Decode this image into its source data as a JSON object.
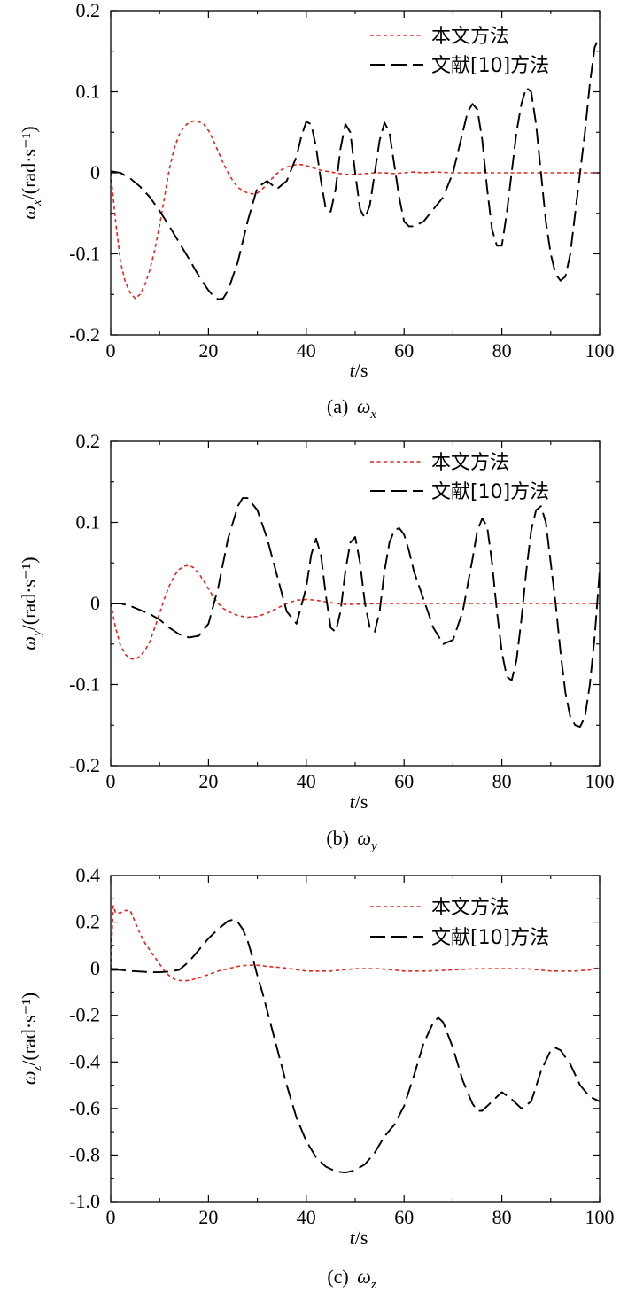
{
  "chart_data": [
    {
      "type": "line",
      "caption_prefix": "(a) ",
      "caption_symbol": "ω",
      "caption_sub": "x",
      "ylabel_symbol": "ω",
      "ylabel_sub": "x",
      "ylabel_unit": "/(rad·s⁻¹)",
      "xlabel_var": "t",
      "xlabel_unit": "/s",
      "xlim": [
        0,
        100
      ],
      "ylim": [
        -0.2,
        0.2
      ],
      "xticks": [
        0,
        20,
        40,
        60,
        80,
        100
      ],
      "yticks": [
        -0.2,
        -0.1,
        0,
        0.1,
        0.2
      ],
      "ytick_labels": [
        "-0.2",
        "-0.1",
        "0",
        "0.1",
        "0.2"
      ],
      "legend": [
        "本文方法",
        "文献[10]方法"
      ],
      "series": [
        {
          "name": "本文方法",
          "color": "#e8231f",
          "style": "dotted",
          "x": [
            0,
            1,
            2,
            3,
            4,
            5,
            6,
            7,
            8,
            9,
            10,
            11,
            12,
            13,
            14,
            15,
            16,
            17,
            18,
            19,
            20,
            21,
            22,
            23,
            24,
            25,
            26,
            27,
            28,
            29,
            30,
            31,
            32,
            33,
            34,
            35,
            36,
            37,
            38,
            39,
            40,
            41,
            42,
            43,
            44,
            45,
            46,
            47,
            48,
            49,
            50,
            52,
            54,
            56,
            58,
            60,
            62,
            64,
            66,
            70,
            80,
            90,
            100
          ],
          "y": [
            0.0,
            -0.06,
            -0.11,
            -0.135,
            -0.148,
            -0.155,
            -0.15,
            -0.138,
            -0.12,
            -0.095,
            -0.065,
            -0.03,
            0.005,
            0.03,
            0.047,
            0.057,
            0.062,
            0.064,
            0.063,
            0.06,
            0.052,
            0.04,
            0.026,
            0.012,
            0.0,
            -0.01,
            -0.018,
            -0.022,
            -0.025,
            -0.026,
            -0.025,
            -0.02,
            -0.014,
            -0.007,
            -0.001,
            0.004,
            0.007,
            0.009,
            0.01,
            0.01,
            0.009,
            0.007,
            0.005,
            0.003,
            0.002,
            0.001,
            0.0,
            -0.001,
            -0.002,
            -0.002,
            -0.002,
            -0.001,
            0.0,
            0.0,
            -0.001,
            0.0,
            0.001,
            0.0,
            0.001,
            0.0,
            0.0,
            0.0,
            0.0
          ]
        },
        {
          "name": "文献[10]方法",
          "color": "#000000",
          "style": "dashed",
          "x": [
            0,
            2,
            4,
            6,
            8,
            10,
            12,
            14,
            16,
            18,
            20,
            21,
            22,
            23,
            24,
            26,
            28,
            30,
            32,
            34,
            36,
            38,
            39,
            40,
            41,
            42,
            43,
            44,
            45,
            46,
            47,
            48,
            49,
            50,
            51,
            52,
            53,
            54,
            55,
            56,
            57,
            58,
            59,
            60,
            61,
            62,
            64,
            66,
            68,
            70,
            72,
            73,
            74,
            75,
            76,
            77,
            78,
            79,
            80,
            81,
            82,
            83,
            84,
            85,
            86,
            87,
            88,
            89,
            90,
            91,
            92,
            93,
            94,
            95,
            96,
            97,
            98,
            99,
            100
          ],
          "y": [
            0.002,
            0.0,
            -0.007,
            -0.017,
            -0.03,
            -0.047,
            -0.066,
            -0.086,
            -0.106,
            -0.127,
            -0.145,
            -0.152,
            -0.156,
            -0.155,
            -0.145,
            -0.11,
            -0.06,
            -0.018,
            -0.01,
            -0.02,
            -0.01,
            0.02,
            0.045,
            0.063,
            0.06,
            0.032,
            -0.01,
            -0.045,
            -0.048,
            -0.02,
            0.03,
            0.06,
            0.05,
            0.0,
            -0.045,
            -0.056,
            -0.04,
            0.0,
            0.04,
            0.062,
            0.05,
            0.01,
            -0.03,
            -0.06,
            -0.066,
            -0.066,
            -0.06,
            -0.045,
            -0.03,
            0.0,
            0.05,
            0.075,
            0.085,
            0.078,
            0.04,
            -0.02,
            -0.07,
            -0.09,
            -0.09,
            -0.05,
            0.0,
            0.05,
            0.085,
            0.105,
            0.1,
            0.06,
            0.0,
            -0.06,
            -0.1,
            -0.125,
            -0.133,
            -0.128,
            -0.1,
            -0.05,
            0.0,
            0.05,
            0.11,
            0.155,
            0.168
          ]
        }
      ]
    },
    {
      "type": "line",
      "caption_prefix": "(b) ",
      "caption_symbol": "ω",
      "caption_sub": "y",
      "ylabel_symbol": "ω",
      "ylabel_sub": "y",
      "ylabel_unit": "/(rad·s⁻¹)",
      "xlabel_var": "t",
      "xlabel_unit": "/s",
      "xlim": [
        0,
        100
      ],
      "ylim": [
        -0.2,
        0.2
      ],
      "xticks": [
        0,
        20,
        40,
        60,
        80,
        100
      ],
      "yticks": [
        -0.2,
        -0.1,
        0,
        0.1,
        0.2
      ],
      "ytick_labels": [
        "-0.2",
        "-0.1",
        "0",
        "0.1",
        "0.2"
      ],
      "legend": [
        "本文方法",
        "文献[10]方法"
      ],
      "series": [
        {
          "name": "本文方法",
          "color": "#e8231f",
          "style": "dotted",
          "x": [
            0,
            1,
            2,
            3,
            4,
            5,
            6,
            7,
            8,
            9,
            10,
            11,
            12,
            13,
            14,
            15,
            16,
            17,
            18,
            19,
            20,
            21,
            22,
            23,
            24,
            26,
            28,
            30,
            32,
            34,
            36,
            38,
            40,
            42,
            44,
            46,
            48,
            50,
            55,
            60,
            70,
            80,
            90,
            100
          ],
          "y": [
            0.0,
            -0.03,
            -0.052,
            -0.063,
            -0.068,
            -0.069,
            -0.065,
            -0.058,
            -0.047,
            -0.03,
            -0.012,
            0.006,
            0.022,
            0.034,
            0.042,
            0.046,
            0.047,
            0.044,
            0.037,
            0.028,
            0.018,
            0.008,
            0.0,
            -0.006,
            -0.01,
            -0.015,
            -0.017,
            -0.016,
            -0.012,
            -0.006,
            0.0,
            0.004,
            0.005,
            0.004,
            0.002,
            0.0,
            -0.001,
            -0.001,
            0.0,
            0.0,
            0.0,
            0.0,
            0.0,
            0.0
          ]
        },
        {
          "name": "文献[10]方法",
          "color": "#000000",
          "style": "dashed",
          "x": [
            0,
            2,
            4,
            6,
            8,
            10,
            12,
            14,
            16,
            18,
            20,
            22,
            24,
            26,
            27,
            28,
            30,
            32,
            34,
            36,
            38,
            40,
            41,
            42,
            43,
            44,
            45,
            46,
            47,
            48,
            49,
            50,
            51,
            52,
            53,
            54,
            55,
            56,
            57,
            58,
            59,
            60,
            61,
            62,
            64,
            66,
            68,
            70,
            72,
            74,
            75,
            76,
            77,
            78,
            79,
            80,
            81,
            82,
            83,
            84,
            85,
            86,
            87,
            88,
            89,
            90,
            91,
            92,
            93,
            94,
            95,
            96,
            97,
            98,
            99,
            100
          ],
          "y": [
            0.0,
            0.0,
            -0.003,
            -0.008,
            -0.013,
            -0.02,
            -0.03,
            -0.038,
            -0.042,
            -0.04,
            -0.025,
            0.02,
            0.08,
            0.12,
            0.13,
            0.13,
            0.115,
            0.08,
            0.035,
            -0.01,
            -0.025,
            0.02,
            0.06,
            0.08,
            0.06,
            0.01,
            -0.03,
            -0.035,
            -0.01,
            0.04,
            0.075,
            0.082,
            0.05,
            0.0,
            -0.03,
            -0.035,
            -0.01,
            0.04,
            0.075,
            0.09,
            0.093,
            0.085,
            0.065,
            0.04,
            0.005,
            -0.03,
            -0.05,
            -0.045,
            -0.01,
            0.055,
            0.09,
            0.105,
            0.095,
            0.05,
            -0.01,
            -0.06,
            -0.09,
            -0.095,
            -0.07,
            -0.02,
            0.04,
            0.09,
            0.115,
            0.12,
            0.1,
            0.05,
            0.0,
            -0.06,
            -0.11,
            -0.14,
            -0.15,
            -0.152,
            -0.14,
            -0.1,
            -0.04,
            0.04
          ]
        }
      ]
    },
    {
      "type": "line",
      "caption_prefix": "(c) ",
      "caption_symbol": "ω",
      "caption_sub": "z",
      "ylabel_symbol": "ω",
      "ylabel_sub": "z",
      "ylabel_unit": "/(rad·s⁻¹)",
      "xlabel_var": "t",
      "xlabel_unit": "/s",
      "xlim": [
        0,
        100
      ],
      "ylim": [
        -1.0,
        0.4
      ],
      "xticks": [
        0,
        20,
        40,
        60,
        80,
        100
      ],
      "yticks": [
        -1.0,
        -0.8,
        -0.6,
        -0.4,
        -0.2,
        0,
        0.2,
        0.4
      ],
      "ytick_labels": [
        "-1.0",
        "-0.8",
        "-0.6",
        "-0.4",
        "-0.2",
        "0",
        "0.2",
        "0.4"
      ],
      "legend": [
        "本文方法",
        "文献[10]方法"
      ],
      "series": [
        {
          "name": "本文方法",
          "color": "#e8231f",
          "style": "dotted",
          "x": [
            0,
            0.5,
            1,
            2,
            3,
            4,
            5,
            6,
            7,
            8,
            9,
            10,
            11,
            12,
            13,
            14,
            15,
            16,
            17,
            18,
            20,
            22,
            24,
            26,
            28,
            30,
            32,
            35,
            40,
            45,
            50,
            55,
            60,
            65,
            70,
            75,
            80,
            85,
            90,
            95,
            98,
            100
          ],
          "y": [
            0.0,
            0.27,
            0.24,
            0.24,
            0.25,
            0.25,
            0.2,
            0.15,
            0.11,
            0.08,
            0.05,
            0.02,
            -0.01,
            -0.03,
            -0.045,
            -0.05,
            -0.052,
            -0.05,
            -0.045,
            -0.04,
            -0.025,
            -0.01,
            0.0,
            0.01,
            0.015,
            0.015,
            0.01,
            0.005,
            -0.01,
            -0.01,
            0.0,
            0.0,
            -0.01,
            -0.01,
            -0.005,
            0.0,
            0.0,
            0.0,
            -0.01,
            -0.01,
            -0.005,
            0.005
          ]
        },
        {
          "name": "文献[10]方法",
          "color": "#000000",
          "style": "dashed",
          "x": [
            0,
            2,
            4,
            6,
            8,
            10,
            12,
            14,
            16,
            18,
            20,
            22,
            24,
            25,
            26,
            27,
            28,
            29,
            30,
            31,
            32,
            33,
            34,
            35,
            36,
            37,
            38,
            40,
            42,
            44,
            46,
            48,
            50,
            52,
            54,
            56,
            58,
            60,
            62,
            64,
            66,
            67,
            68,
            70,
            72,
            74,
            75,
            76,
            78,
            80,
            82,
            84,
            86,
            88,
            90,
            91,
            92,
            94,
            96,
            98,
            100
          ],
          "y": [
            -0.005,
            -0.005,
            -0.01,
            -0.012,
            -0.015,
            -0.015,
            -0.012,
            -0.005,
            0.03,
            0.08,
            0.13,
            0.17,
            0.205,
            0.21,
            0.2,
            0.17,
            0.12,
            0.05,
            -0.03,
            -0.1,
            -0.18,
            -0.26,
            -0.34,
            -0.42,
            -0.5,
            -0.57,
            -0.64,
            -0.74,
            -0.81,
            -0.85,
            -0.87,
            -0.875,
            -0.865,
            -0.84,
            -0.79,
            -0.72,
            -0.67,
            -0.59,
            -0.46,
            -0.32,
            -0.23,
            -0.21,
            -0.23,
            -0.34,
            -0.48,
            -0.58,
            -0.61,
            -0.61,
            -0.57,
            -0.53,
            -0.56,
            -0.6,
            -0.57,
            -0.44,
            -0.35,
            -0.34,
            -0.35,
            -0.41,
            -0.5,
            -0.55,
            -0.57
          ]
        }
      ]
    }
  ]
}
